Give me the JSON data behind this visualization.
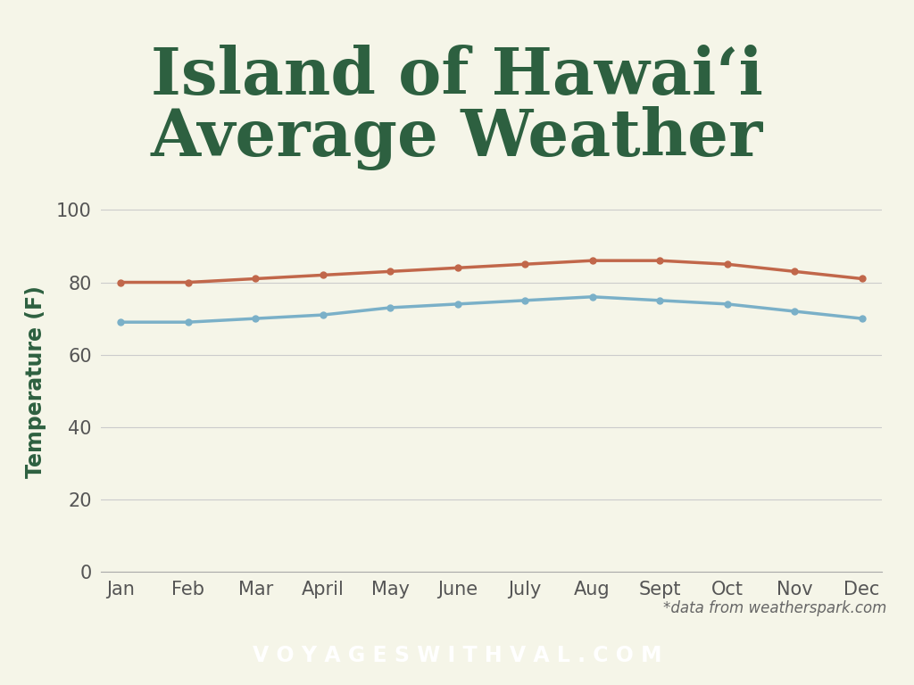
{
  "title_line1": "Island of Hawaiʻi",
  "title_line2": "Average Weather",
  "title_color": "#2d6040",
  "background_color": "#f5f5e8",
  "footer_bg_color": "#336655",
  "footer_text": "V O Y A G E S W I T H V A L . C O M",
  "footer_text_color": "#ffffff",
  "source_text": "*data from weatherspark.com",
  "ylabel": "Temperature (F)",
  "ylabel_color": "#2d6040",
  "months": [
    "Jan",
    "Feb",
    "Mar",
    "April",
    "May",
    "June",
    "July",
    "Aug",
    "Sept",
    "Oct",
    "Nov",
    "Dec"
  ],
  "high_temps": [
    80,
    80,
    81,
    82,
    83,
    84,
    85,
    86,
    86,
    85,
    83,
    81
  ],
  "low_temps": [
    69,
    69,
    70,
    71,
    73,
    74,
    75,
    76,
    75,
    74,
    72,
    70
  ],
  "high_color": "#c1674a",
  "low_color": "#7ab0c8",
  "ylim": [
    0,
    105
  ],
  "yticks": [
    0,
    20,
    40,
    60,
    80,
    100
  ],
  "tick_color": "#555555",
  "grid_color": "#cccccc",
  "line_width": 2.5,
  "marker_size": 5,
  "title_fontsize": 52,
  "ylabel_fontsize": 17,
  "tick_fontsize": 15,
  "footer_fontsize": 17,
  "source_fontsize": 12
}
